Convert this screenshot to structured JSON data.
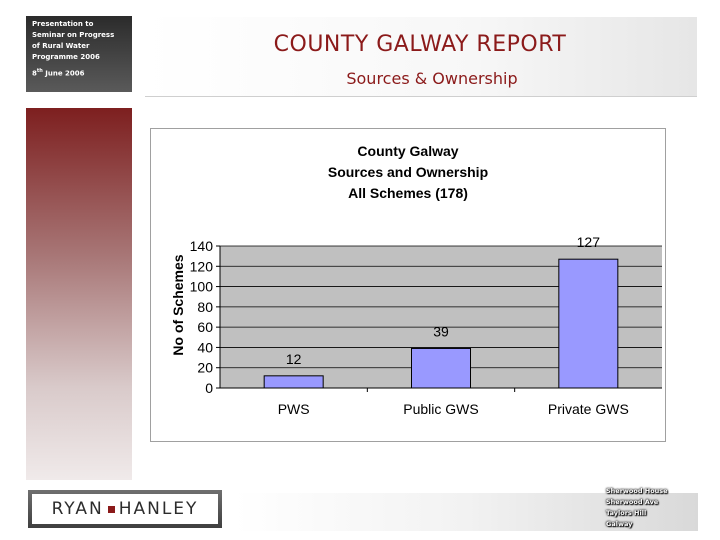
{
  "info_box": {
    "lines": [
      "Presentation to",
      "Seminar on Progress",
      "of Rural Water",
      "Programme 2006"
    ],
    "date": "8th June 2006"
  },
  "header": {
    "title": "COUNTY GALWAY REPORT",
    "subtitle": "Sources & Ownership"
  },
  "chart_data": {
    "type": "bar",
    "title": [
      "County Galway",
      "Sources and Ownership",
      "All Schemes (178)"
    ],
    "categories": [
      "PWS",
      "Public GWS",
      "Private GWS"
    ],
    "values": [
      12,
      39,
      127
    ],
    "xlabel": "",
    "ylabel": "No of Schemes",
    "ylim": [
      0,
      140
    ],
    "yticks": [
      0,
      20,
      40,
      60,
      80,
      100,
      120,
      140
    ],
    "grid": true,
    "legend": "none",
    "colors": {
      "bar": "#9999ff",
      "bar_stroke": "#000000",
      "plot_bg": "#c0c0c0",
      "chart_bg": "#ffffff"
    }
  },
  "logo": {
    "left": "RYAN",
    "right": "HANLEY"
  },
  "address": {
    "lines": [
      "Sherwood House",
      "Sherwood Ave",
      "Taylors Hill",
      "Galway"
    ]
  }
}
